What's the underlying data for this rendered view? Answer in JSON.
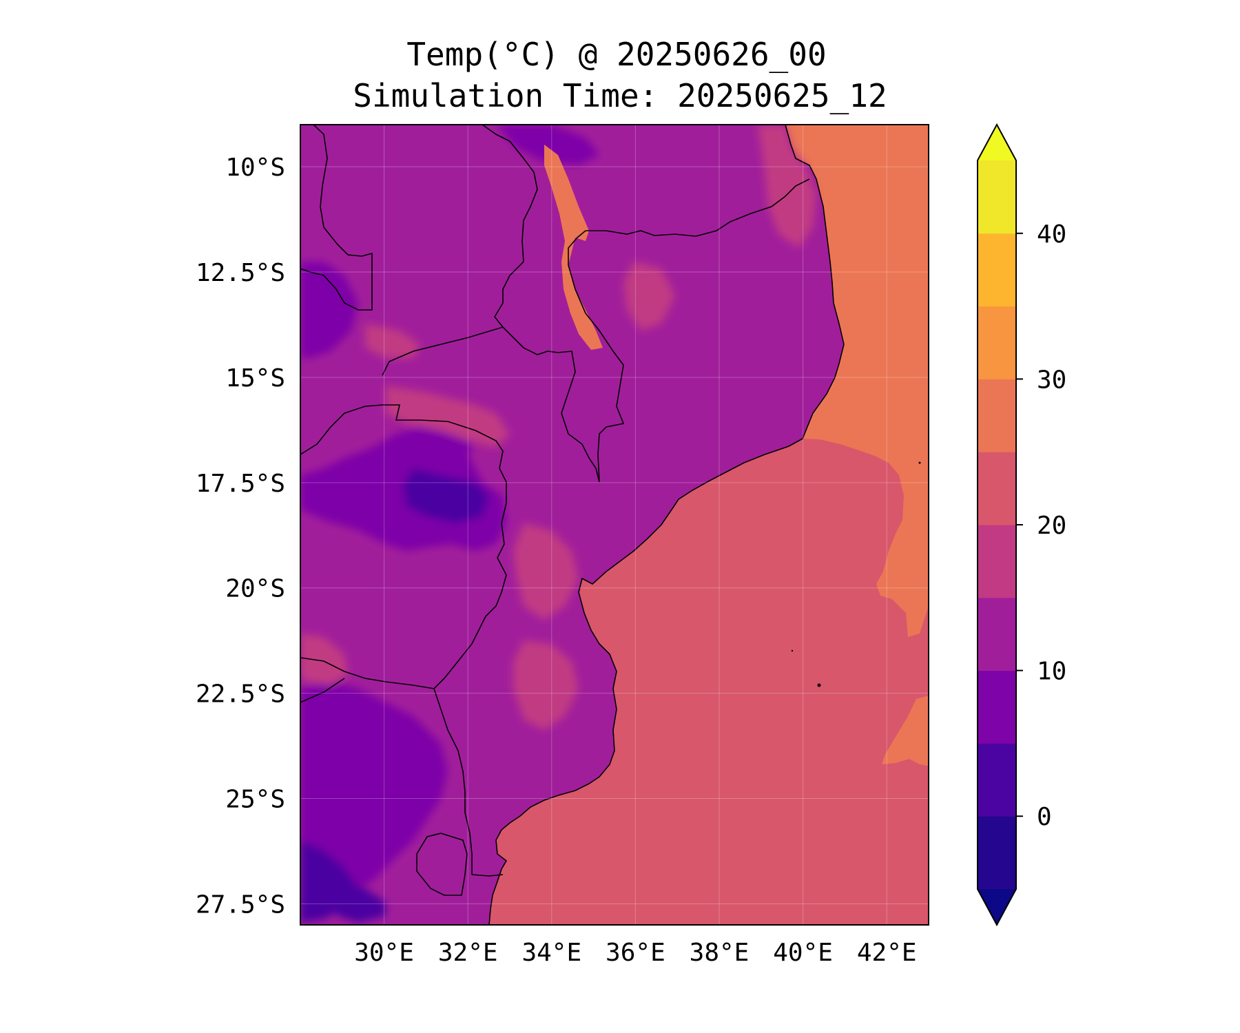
{
  "title_line1": "Temp(°C) @ 20250626_00",
  "title_line2": "Simulation Time: 20250625_12",
  "map": {
    "lon_range": [
      28.0,
      43.0
    ],
    "lat_range": [
      -28.0,
      -9.0
    ],
    "lat_ticks": [
      {
        "value": -10.0,
        "label": "10°S"
      },
      {
        "value": -12.5,
        "label": "12.5°S"
      },
      {
        "value": -15.0,
        "label": "15°S"
      },
      {
        "value": -17.5,
        "label": "17.5°S"
      },
      {
        "value": -20.0,
        "label": "20°S"
      },
      {
        "value": -22.5,
        "label": "22.5°S"
      },
      {
        "value": -25.0,
        "label": "25°S"
      },
      {
        "value": -27.5,
        "label": "27.5°S"
      }
    ],
    "lon_ticks": [
      {
        "value": 30,
        "label": "30°E"
      },
      {
        "value": 32,
        "label": "32°E"
      },
      {
        "value": 34,
        "label": "34°E"
      },
      {
        "value": 36,
        "label": "36°E"
      },
      {
        "value": 38,
        "label": "38°E"
      },
      {
        "value": 40,
        "label": "40°E"
      },
      {
        "value": 42,
        "label": "42°E"
      }
    ],
    "grid": true
  },
  "colorbar": {
    "levels": [
      -5,
      0,
      5,
      10,
      15,
      20,
      25,
      30,
      35,
      40,
      45
    ],
    "colors": [
      "#24068f",
      "#4b03a1",
      "#7e03a8",
      "#a11e9b",
      "#c13a83",
      "#d8576b",
      "#eb7655",
      "#f89540",
      "#fdb42f",
      "#f0e62a"
    ],
    "under_color": "#0d0887",
    "over_color": "#f0f921",
    "extend": "both",
    "ticks": [
      {
        "value": 0,
        "label": "0"
      },
      {
        "value": 10,
        "label": "10"
      },
      {
        "value": 20,
        "label": "20"
      },
      {
        "value": 30,
        "label": "30"
      },
      {
        "value": 40,
        "label": "40"
      }
    ]
  },
  "colors": {
    "land_base": "#a11e9b",
    "land_warm": "#c13a83",
    "land_cool": "#7e03a8",
    "land_cold": "#4b03a1",
    "lake_warm": "#eb7655",
    "ocean_south": "#d8576b",
    "ocean_north": "#eb7655",
    "border": "#000000"
  }
}
